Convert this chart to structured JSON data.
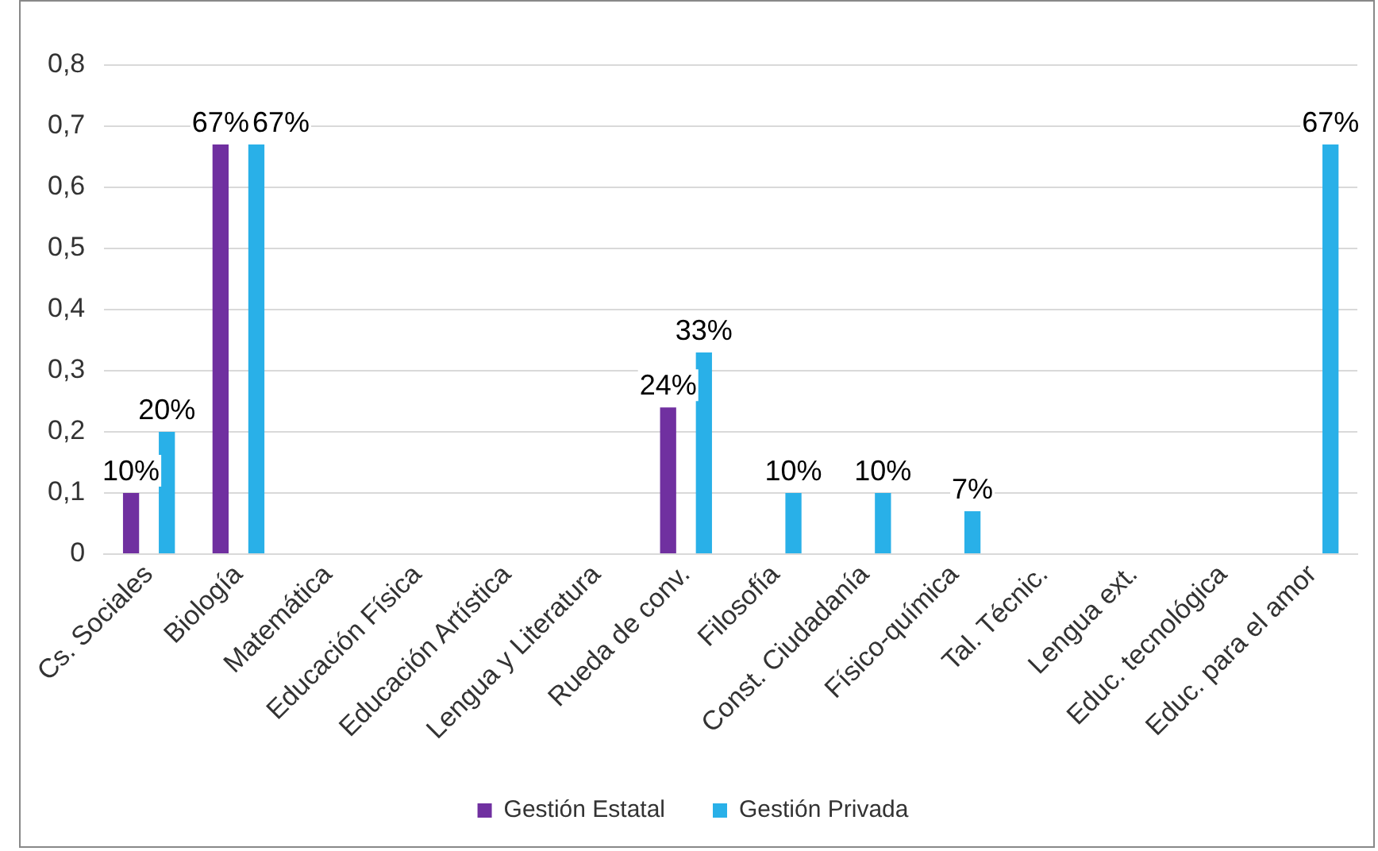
{
  "chart_data": {
    "type": "bar",
    "categories": [
      "Cs. Sociales",
      "Biología",
      "Matemática",
      "Educación Física",
      "Educación Artística",
      "Lengua y Literatura",
      "Rueda de conv.",
      "Filosofía",
      "Const. Ciudadanía",
      "Físico-química",
      "Tal. Técnic.",
      "Lengua ext.",
      "Educ. tecnológica",
      "Educ. para el amor"
    ],
    "series": [
      {
        "name": "Gestión Estatal",
        "color": "#7030a0",
        "values": [
          0.1,
          0.67,
          0,
          0,
          0,
          0,
          0.24,
          0,
          0,
          0,
          0,
          0,
          0,
          0
        ],
        "value_labels": [
          "10%",
          "67%",
          null,
          null,
          null,
          null,
          "24%",
          null,
          null,
          null,
          null,
          null,
          null,
          null
        ]
      },
      {
        "name": "Gestión Privada",
        "color": "#29b0e8",
        "values": [
          0.2,
          0.67,
          0,
          0,
          0,
          0,
          0.33,
          0.1,
          0.1,
          0.07,
          0,
          0,
          0,
          0.67
        ],
        "value_labels": [
          "20%",
          "67%",
          null,
          null,
          null,
          null,
          "33%",
          "10%",
          "10%",
          "7%",
          null,
          null,
          null,
          "67%"
        ]
      }
    ],
    "ylim": [
      0,
      0.8
    ],
    "yticks": [
      0,
      {
        "value": 0.1,
        "label": "0,1"
      },
      {
        "value": 0.2,
        "label": "0,2"
      },
      {
        "value": 0.3,
        "label": "0,3"
      },
      {
        "value": 0.4,
        "label": "0,4"
      },
      {
        "value": 0.5,
        "label": "0,5"
      },
      {
        "value": 0.6,
        "label": "0,6"
      },
      {
        "value": 0.7,
        "label": "0,7"
      },
      {
        "value": 0.8,
        "label": "0,8"
      }
    ],
    "grid": "y",
    "legend": "bottom"
  }
}
